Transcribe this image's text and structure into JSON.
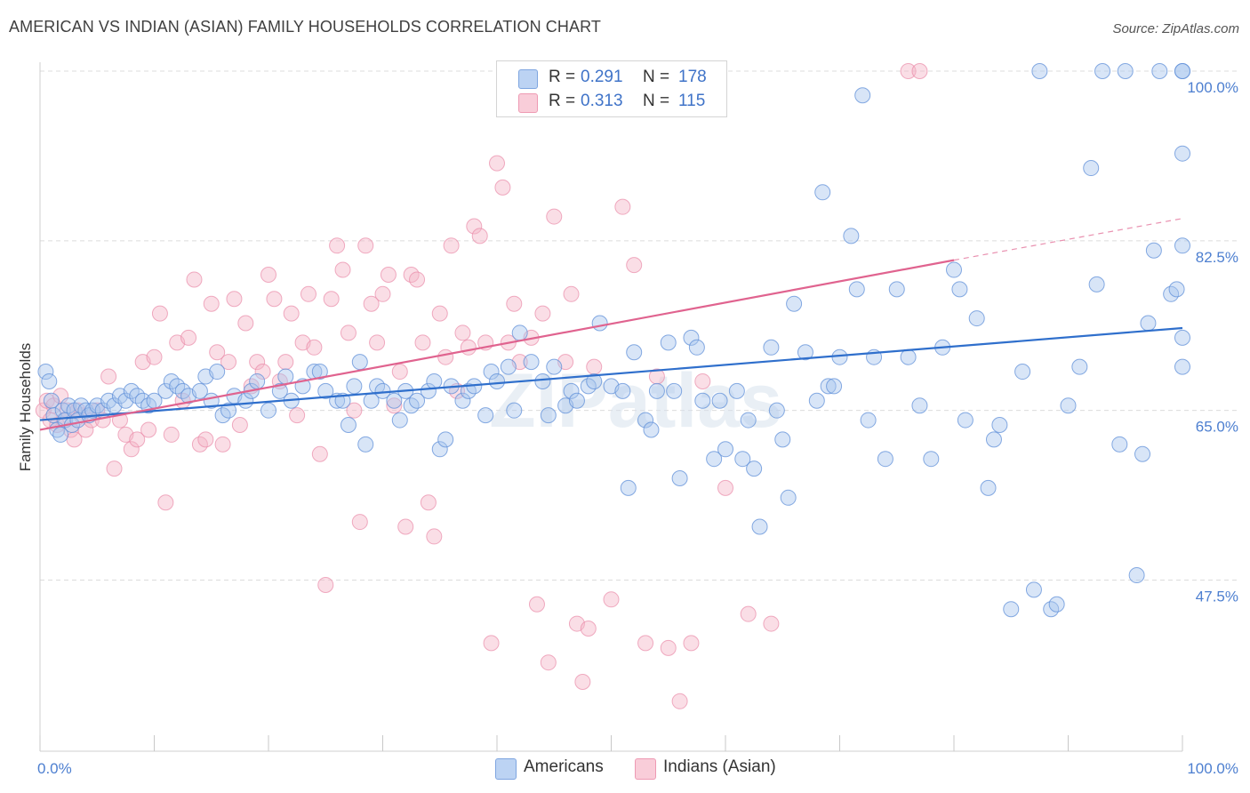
{
  "title": "AMERICAN VS INDIAN (ASIAN) FAMILY HOUSEHOLDS CORRELATION CHART",
  "source": "Source: ZipAtlas.com",
  "watermark": "ZIPatlas",
  "colors": {
    "blue": "#a9c6ee",
    "blue_line": "#2f6fcc",
    "pink": "#f5b6c8",
    "pink_line": "#e0638f",
    "grid": "#dcdcdc",
    "tick_label": "#4d7fd0"
  },
  "legend": {
    "rows": [
      {
        "r_label": "R =",
        "r_value": "0.291",
        "n_label": "N =",
        "n_value": "178",
        "color": "blue"
      },
      {
        "r_label": "R =",
        "r_value": "0.313",
        "n_label": "N =",
        "n_value": "115",
        "color": "pink"
      }
    ]
  },
  "bottom_legend": [
    {
      "label": "Americans",
      "color": "blue"
    },
    {
      "label": "Indians (Asian)",
      "color": "pink"
    }
  ],
  "chart_data": {
    "type": "scatter",
    "title": "AMERICAN VS INDIAN (ASIAN) FAMILY HOUSEHOLDS CORRELATION CHART",
    "xlabel": "",
    "ylabel": "Family Households",
    "x_tick_labels": [
      "0.0%",
      "100.0%"
    ],
    "y_tick_labels": [
      "100.0%",
      "82.5%",
      "65.0%",
      "47.5%"
    ],
    "y_ticks": [
      100.0,
      82.5,
      65.0,
      47.5
    ],
    "xlim": [
      0,
      100
    ],
    "ylim": [
      32,
      102
    ],
    "grid": true,
    "legend_position": "top-center",
    "series": [
      {
        "name": "Americans",
        "color": "blue",
        "trend": {
          "x": [
            0,
            100
          ],
          "y": [
            64.0,
            73.5
          ],
          "style": "solid"
        },
        "points": [
          [
            0.5,
            69
          ],
          [
            0.8,
            68
          ],
          [
            1.0,
            66
          ],
          [
            1.2,
            64.5
          ],
          [
            1.5,
            63
          ],
          [
            1.8,
            62.5
          ],
          [
            2.0,
            65
          ],
          [
            2.2,
            64
          ],
          [
            2.5,
            65.5
          ],
          [
            2.8,
            63.5
          ],
          [
            3.0,
            65
          ],
          [
            3.3,
            64
          ],
          [
            3.6,
            65.5
          ],
          [
            4.0,
            65
          ],
          [
            4.3,
            64.5
          ],
          [
            4.6,
            65
          ],
          [
            5.0,
            65.5
          ],
          [
            5.5,
            65
          ],
          [
            6.0,
            66
          ],
          [
            6.5,
            65.5
          ],
          [
            7.0,
            66.5
          ],
          [
            7.5,
            66
          ],
          [
            8.0,
            67
          ],
          [
            8.5,
            66.5
          ],
          [
            9.0,
            66
          ],
          [
            9.5,
            65.5
          ],
          [
            10.0,
            66
          ],
          [
            11.0,
            67
          ],
          [
            11.5,
            68
          ],
          [
            12.0,
            67.5
          ],
          [
            12.5,
            67
          ],
          [
            13.0,
            66.5
          ],
          [
            14.0,
            67
          ],
          [
            14.5,
            68.5
          ],
          [
            15.0,
            66
          ],
          [
            15.5,
            69
          ],
          [
            16.0,
            64.5
          ],
          [
            16.5,
            65
          ],
          [
            17.0,
            66.5
          ],
          [
            18.0,
            66
          ],
          [
            18.5,
            67
          ],
          [
            19.0,
            68
          ],
          [
            20.0,
            65
          ],
          [
            21.0,
            67
          ],
          [
            21.5,
            68.5
          ],
          [
            22.0,
            66
          ],
          [
            23.0,
            67.5
          ],
          [
            24.0,
            69
          ],
          [
            24.5,
            69
          ],
          [
            25.0,
            67
          ],
          [
            26.0,
            66
          ],
          [
            26.5,
            66
          ],
          [
            27.0,
            63.5
          ],
          [
            27.5,
            67.5
          ],
          [
            28.0,
            70
          ],
          [
            28.5,
            61.5
          ],
          [
            29.0,
            66
          ],
          [
            29.5,
            67.5
          ],
          [
            30.0,
            67
          ],
          [
            31.0,
            66
          ],
          [
            31.5,
            64
          ],
          [
            32.0,
            67
          ],
          [
            32.5,
            65.5
          ],
          [
            33.0,
            66
          ],
          [
            34.0,
            67
          ],
          [
            34.5,
            68
          ],
          [
            35.0,
            61
          ],
          [
            35.5,
            62
          ],
          [
            36.0,
            67.5
          ],
          [
            37.0,
            66
          ],
          [
            37.5,
            67
          ],
          [
            38.0,
            67.5
          ],
          [
            39.0,
            64.5
          ],
          [
            39.5,
            69
          ],
          [
            40.0,
            68
          ],
          [
            41.0,
            69.5
          ],
          [
            41.5,
            65
          ],
          [
            42.0,
            73
          ],
          [
            43.0,
            70
          ],
          [
            44.0,
            68
          ],
          [
            44.5,
            64.5
          ],
          [
            45.0,
            69.5
          ],
          [
            46.0,
            65.5
          ],
          [
            46.5,
            67
          ],
          [
            47.0,
            66
          ],
          [
            48.0,
            67.5
          ],
          [
            48.5,
            68
          ],
          [
            49.0,
            74
          ],
          [
            50.0,
            67.5
          ],
          [
            51.0,
            67
          ],
          [
            51.5,
            57
          ],
          [
            52.0,
            71
          ],
          [
            53.0,
            64
          ],
          [
            53.5,
            63
          ],
          [
            54.0,
            67
          ],
          [
            55.0,
            72
          ],
          [
            55.5,
            67
          ],
          [
            56.0,
            58
          ],
          [
            57.0,
            72.5
          ],
          [
            57.5,
            71.5
          ],
          [
            58.0,
            66
          ],
          [
            59.0,
            60
          ],
          [
            59.5,
            66
          ],
          [
            60.0,
            61
          ],
          [
            61.0,
            67
          ],
          [
            61.5,
            60
          ],
          [
            62.0,
            64
          ],
          [
            62.5,
            59
          ],
          [
            63.0,
            53
          ],
          [
            64.0,
            71.5
          ],
          [
            64.5,
            65
          ],
          [
            65.0,
            62
          ],
          [
            65.5,
            56
          ],
          [
            66.0,
            76
          ],
          [
            67.0,
            71
          ],
          [
            68.0,
            66
          ],
          [
            68.5,
            87.5
          ],
          [
            69.0,
            67.5
          ],
          [
            69.5,
            67.5
          ],
          [
            70.0,
            70.5
          ],
          [
            71.0,
            83
          ],
          [
            71.5,
            77.5
          ],
          [
            72.0,
            97.5
          ],
          [
            72.5,
            64
          ],
          [
            73.0,
            70.5
          ],
          [
            74.0,
            60
          ],
          [
            75.0,
            77.5
          ],
          [
            76.0,
            70.5
          ],
          [
            77.0,
            65.5
          ],
          [
            78.0,
            60
          ],
          [
            79.0,
            71.5
          ],
          [
            80.0,
            79.5
          ],
          [
            80.5,
            77.5
          ],
          [
            81.0,
            64
          ],
          [
            82.0,
            74.5
          ],
          [
            83.0,
            57
          ],
          [
            83.5,
            62
          ],
          [
            84.0,
            63.5
          ],
          [
            85.0,
            44.5
          ],
          [
            86.0,
            69
          ],
          [
            87.0,
            46.5
          ],
          [
            87.5,
            100
          ],
          [
            88.5,
            44.5
          ],
          [
            89.0,
            45
          ],
          [
            90.0,
            65.5
          ],
          [
            91.0,
            69.5
          ],
          [
            92.0,
            90
          ],
          [
            92.5,
            78
          ],
          [
            93.0,
            100
          ],
          [
            94.5,
            61.5
          ],
          [
            95.0,
            100
          ],
          [
            96.0,
            48
          ],
          [
            96.5,
            60.5
          ],
          [
            97.0,
            74
          ],
          [
            97.5,
            81.5
          ],
          [
            98.0,
            100
          ],
          [
            99.0,
            77
          ],
          [
            99.5,
            77.5
          ],
          [
            100.0,
            69.5
          ],
          [
            100.0,
            100
          ],
          [
            100.0,
            100
          ],
          [
            100.0,
            91.5
          ],
          [
            100.0,
            72.5
          ],
          [
            100.0,
            82
          ]
        ]
      },
      {
        "name": "Indians (Asian)",
        "color": "pink",
        "trend": {
          "x": [
            0,
            80
          ],
          "y": [
            63.0,
            80.5
          ],
          "style": "solid",
          "dashed_to": {
            "x": 100,
            "y": 84.8
          }
        },
        "points": [
          [
            0.3,
            65
          ],
          [
            0.6,
            66
          ],
          [
            0.9,
            64
          ],
          [
            1.2,
            65.5
          ],
          [
            1.5,
            63.5
          ],
          [
            1.8,
            66.5
          ],
          [
            2.1,
            64
          ],
          [
            2.4,
            65
          ],
          [
            2.7,
            63
          ],
          [
            3.0,
            62
          ],
          [
            3.3,
            65
          ],
          [
            3.6,
            64.5
          ],
          [
            4.0,
            63
          ],
          [
            4.5,
            64
          ],
          [
            5.0,
            65
          ],
          [
            5.5,
            64
          ],
          [
            6.0,
            68.5
          ],
          [
            6.5,
            59
          ],
          [
            7.0,
            64
          ],
          [
            7.5,
            62.5
          ],
          [
            8.0,
            61
          ],
          [
            8.5,
            62
          ],
          [
            9.0,
            70
          ],
          [
            9.5,
            63
          ],
          [
            10.0,
            70.5
          ],
          [
            10.5,
            75
          ],
          [
            11.0,
            55.5
          ],
          [
            11.5,
            62.5
          ],
          [
            12.0,
            72
          ],
          [
            12.5,
            66
          ],
          [
            13.0,
            72.5
          ],
          [
            13.5,
            78.5
          ],
          [
            14.0,
            61.5
          ],
          [
            14.5,
            62
          ],
          [
            15.0,
            76
          ],
          [
            15.5,
            71
          ],
          [
            16.0,
            61.5
          ],
          [
            16.5,
            70
          ],
          [
            17.0,
            76.5
          ],
          [
            17.5,
            63.5
          ],
          [
            18.0,
            74
          ],
          [
            18.5,
            67.5
          ],
          [
            19.0,
            70
          ],
          [
            19.5,
            69
          ],
          [
            20.0,
            79
          ],
          [
            20.5,
            76.5
          ],
          [
            21.0,
            68
          ],
          [
            21.5,
            70
          ],
          [
            22.0,
            75
          ],
          [
            22.5,
            64.5
          ],
          [
            23.0,
            72
          ],
          [
            23.5,
            77
          ],
          [
            24.0,
            71.5
          ],
          [
            24.5,
            60.5
          ],
          [
            25.0,
            47
          ],
          [
            25.5,
            76.5
          ],
          [
            26.0,
            82
          ],
          [
            26.5,
            79.5
          ],
          [
            27.0,
            73
          ],
          [
            27.5,
            65
          ],
          [
            28.0,
            53.5
          ],
          [
            28.5,
            82
          ],
          [
            29.0,
            76
          ],
          [
            29.5,
            72
          ],
          [
            30.0,
            77
          ],
          [
            30.5,
            79
          ],
          [
            31.0,
            65.5
          ],
          [
            31.5,
            69
          ],
          [
            32.0,
            53
          ],
          [
            32.5,
            79
          ],
          [
            33.0,
            78.5
          ],
          [
            33.5,
            72
          ],
          [
            34.0,
            55.5
          ],
          [
            34.5,
            52
          ],
          [
            35.0,
            75
          ],
          [
            35.5,
            70.5
          ],
          [
            36.0,
            82
          ],
          [
            36.5,
            67
          ],
          [
            37.0,
            73
          ],
          [
            37.5,
            71.5
          ],
          [
            38.0,
            84
          ],
          [
            38.5,
            83
          ],
          [
            39.0,
            72
          ],
          [
            39.5,
            41
          ],
          [
            40.0,
            90.5
          ],
          [
            40.5,
            88
          ],
          [
            41.0,
            72
          ],
          [
            41.5,
            76
          ],
          [
            42.0,
            70
          ],
          [
            43.0,
            72.5
          ],
          [
            43.5,
            45
          ],
          [
            44.0,
            75
          ],
          [
            44.5,
            39
          ],
          [
            45.0,
            85
          ],
          [
            46.0,
            70
          ],
          [
            46.5,
            77
          ],
          [
            47.0,
            43
          ],
          [
            47.5,
            37
          ],
          [
            48.0,
            42.5
          ],
          [
            48.5,
            69.5
          ],
          [
            50.0,
            45.5
          ],
          [
            51.0,
            86
          ],
          [
            52.0,
            80
          ],
          [
            53.0,
            41
          ],
          [
            54.0,
            68.5
          ],
          [
            55.0,
            40.5
          ],
          [
            56.0,
            35
          ],
          [
            57.0,
            41
          ],
          [
            58.0,
            68
          ],
          [
            60.0,
            57
          ],
          [
            62.0,
            44
          ],
          [
            64.0,
            43
          ],
          [
            76.0,
            100
          ],
          [
            77.0,
            100
          ]
        ]
      }
    ]
  }
}
